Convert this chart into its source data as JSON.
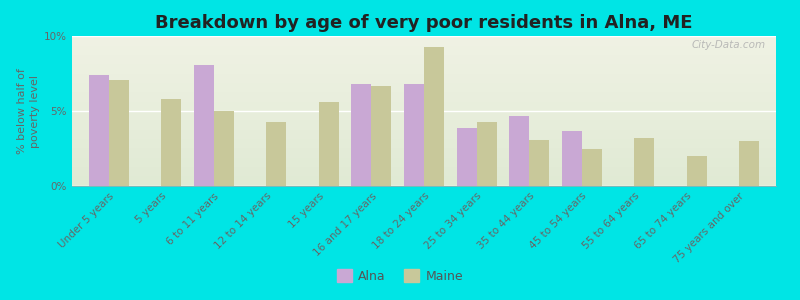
{
  "title": "Breakdown by age of very poor residents in Alna, ME",
  "ylabel": "% below half of\npoverty level",
  "categories": [
    "Under 5 years",
    "5 years",
    "6 to 11 years",
    "12 to 14 years",
    "15 years",
    "16 and 17 years",
    "18 to 24 years",
    "25 to 34 years",
    "35 to 44 years",
    "45 to 54 years",
    "55 to 64 years",
    "65 to 74 years",
    "75 years and over"
  ],
  "alna_values": [
    7.4,
    null,
    8.1,
    null,
    null,
    6.8,
    6.8,
    3.9,
    4.7,
    3.7,
    null,
    null,
    null
  ],
  "maine_values": [
    7.1,
    5.8,
    5.0,
    4.3,
    5.6,
    6.7,
    9.3,
    4.3,
    3.1,
    2.5,
    3.2,
    2.0,
    3.0
  ],
  "alna_color": "#c9a8d4",
  "maine_color": "#c8c89a",
  "background_color": "#00e5e5",
  "plot_bg_top": "#f0f2e4",
  "plot_bg_bottom": "#e0ead4",
  "ylim": [
    0,
    10
  ],
  "yticks": [
    0,
    5,
    10
  ],
  "ytick_labels": [
    "0%",
    "5%",
    "10%"
  ],
  "title_fontsize": 13,
  "axis_label_fontsize": 8,
  "tick_fontsize": 7.5,
  "bar_width": 0.38,
  "legend_labels": [
    "Alna",
    "Maine"
  ],
  "watermark": "City-Data.com"
}
